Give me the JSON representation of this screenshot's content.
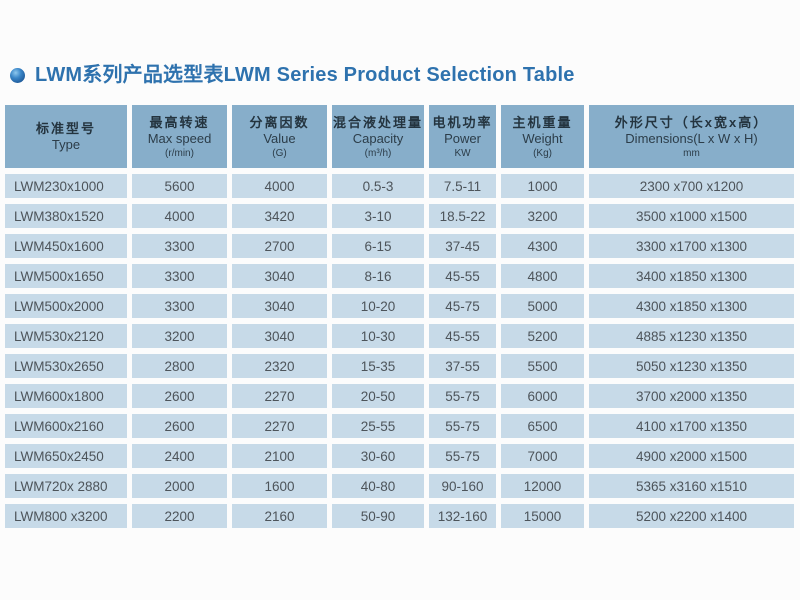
{
  "header": {
    "title": "LWM系列产品选型表LWM Series Product Selection Table",
    "bullet_icon": "blue-sphere-bullet"
  },
  "colors": {
    "title_blue": "#2e72ae",
    "header_cell_bg": "#87aeca",
    "data_cell_bg": "#c7dae8",
    "header_text": "#24343f",
    "data_text": "#4d545a",
    "page_bg": "#fcfcfc"
  },
  "table": {
    "columns": [
      {
        "zh": "标准型号",
        "en": "Type",
        "unit": ""
      },
      {
        "zh": "最高转速",
        "en": "Max speed",
        "unit": "(r/min)"
      },
      {
        "zh": "分离因数",
        "en": "Value",
        "unit": "(G)"
      },
      {
        "zh": "混合液处理量",
        "en": "Capacity",
        "unit": "(m³/h)"
      },
      {
        "zh": "电机功率",
        "en": "Power",
        "unit": "KW"
      },
      {
        "zh": "主机重量",
        "en": "Weight",
        "unit": "(Kg)"
      },
      {
        "zh": "外形尺寸（长x宽x高）",
        "en": "Dimensions(L x W x H)",
        "unit": "mm"
      }
    ],
    "rows": [
      [
        "LWM230x1000",
        "5600",
        "4000",
        "0.5-3",
        "7.5-11",
        "1000",
        "2300 x700 x1200"
      ],
      [
        "LWM380x1520",
        "4000",
        "3420",
        "3-10",
        "18.5-22",
        "3200",
        "3500 x1000 x1500"
      ],
      [
        "LWM450x1600",
        "3300",
        "2700",
        "6-15",
        "37-45",
        "4300",
        "3300 x1700 x1300"
      ],
      [
        "LWM500x1650",
        "3300",
        "3040",
        "8-16",
        "45-55",
        "4800",
        "3400 x1850 x1300"
      ],
      [
        "LWM500x2000",
        "3300",
        "3040",
        "10-20",
        "45-75",
        "5000",
        "4300 x1850 x1300"
      ],
      [
        "LWM530x2120",
        "3200",
        "3040",
        "10-30",
        "45-55",
        "5200",
        "4885 x1230 x1350"
      ],
      [
        "LWM530x2650",
        "2800",
        "2320",
        "15-35",
        "37-55",
        "5500",
        "5050 x1230 x1350"
      ],
      [
        "LWM600x1800",
        "2600",
        "2270",
        "20-50",
        "55-75",
        "6000",
        "3700 x2000 x1350"
      ],
      [
        "LWM600x2160",
        "2600",
        "2270",
        "25-55",
        "55-75",
        "6500",
        "4100 x1700 x1350"
      ],
      [
        "LWM650x2450",
        "2400",
        "2100",
        "30-60",
        "55-75",
        "7000",
        "4900 x2000 x1500"
      ],
      [
        "LWM720x 2880",
        "2000",
        "1600",
        "40-80",
        "90-160",
        "12000",
        "5365 x3160 x1510"
      ],
      [
        "LWM800 x3200",
        "2200",
        "2160",
        "50-90",
        "132-160",
        "15000",
        "5200 x2200 x1400"
      ]
    ]
  }
}
